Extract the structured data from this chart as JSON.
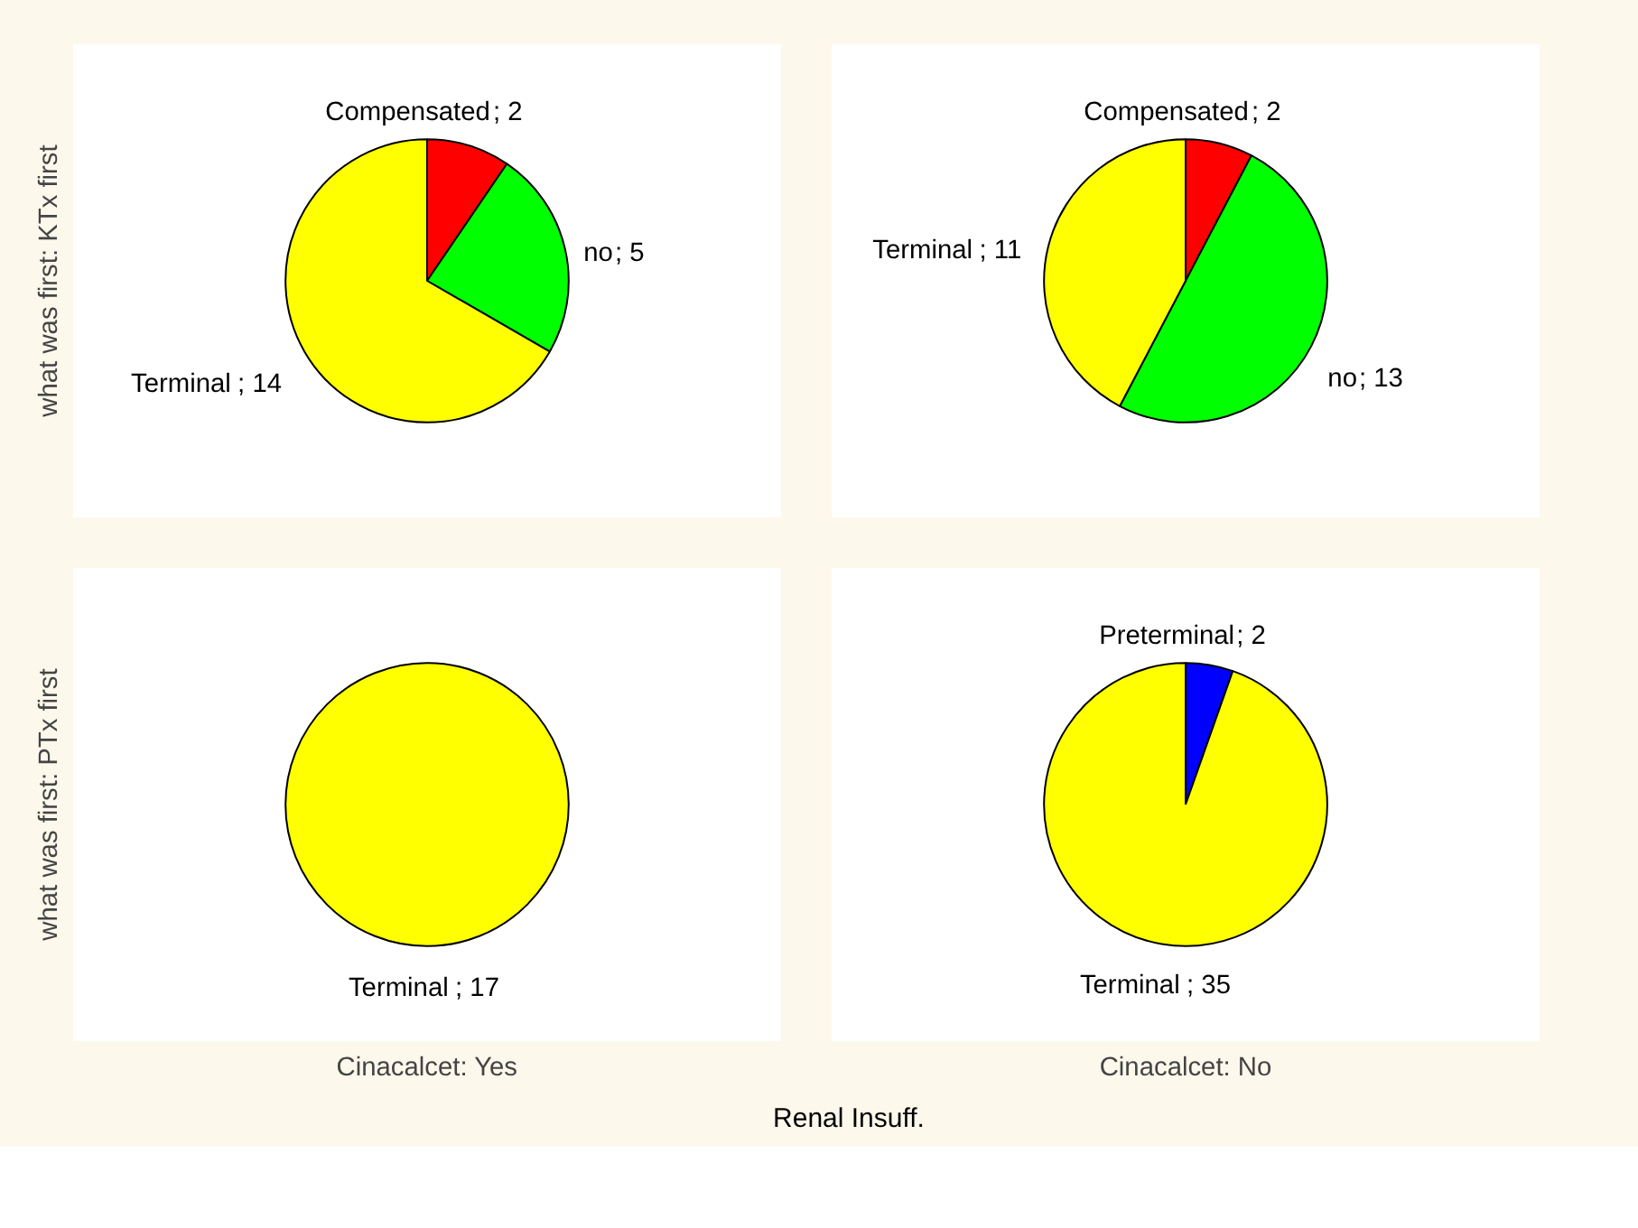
{
  "chart_data": [
    {
      "type": "pie",
      "ylabel": "what was first: KTx first",
      "categories": [
        "Compensated",
        "no",
        "Terminal"
      ],
      "values": [
        2,
        5,
        14
      ],
      "colors": [
        "#ff0000",
        "#00ff00",
        "#ffff00"
      ],
      "value_labels": [
        "; 2",
        "; 5",
        "; 14"
      ]
    },
    {
      "type": "pie",
      "categories": [
        "Compensated",
        "no",
        "Terminal"
      ],
      "values": [
        2,
        13,
        11
      ],
      "colors": [
        "#ff0000",
        "#00ff00",
        "#ffff00"
      ],
      "value_labels": [
        "; 2",
        "; 13",
        "; 11"
      ]
    },
    {
      "type": "pie",
      "ylabel": "what was first: PTx first",
      "xlabel": "Cinacalcet: Yes",
      "categories": [
        "Terminal"
      ],
      "values": [
        17
      ],
      "colors": [
        "#ffff00"
      ],
      "value_labels": [
        "; 17"
      ]
    },
    {
      "type": "pie",
      "xlabel": "Cinacalcet: No",
      "categories": [
        "Preterminal",
        "Terminal"
      ],
      "values": [
        2,
        35
      ],
      "colors": [
        "#0000ff",
        "#ffff00"
      ],
      "value_labels": [
        "; 2",
        "; 35"
      ],
      "annotations": [
        "Renal Insuff."
      ]
    }
  ]
}
